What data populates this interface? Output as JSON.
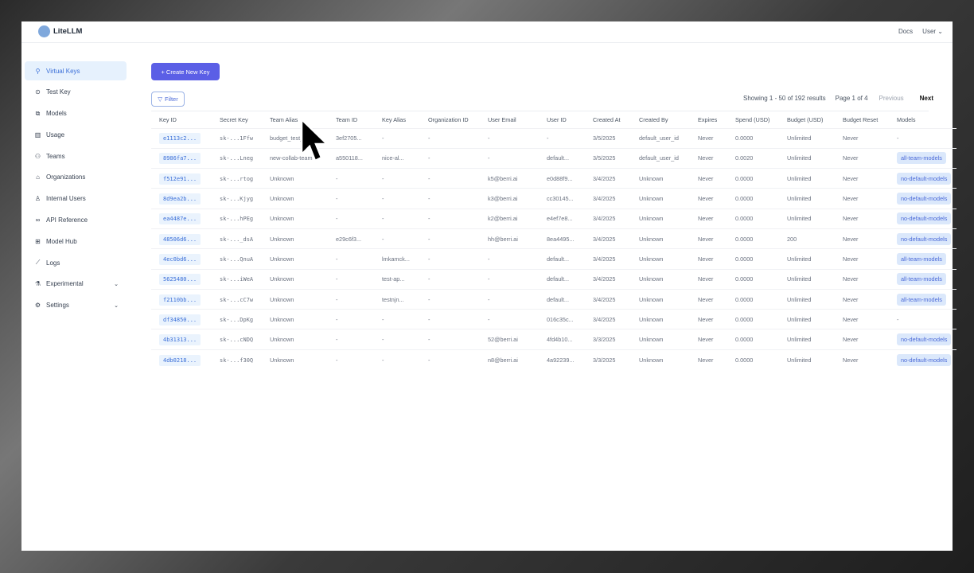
{
  "app": {
    "name": "LiteLLM"
  },
  "topbar": {
    "docs": "Docs",
    "user": "User"
  },
  "sidebar": {
    "items": [
      {
        "label": "Virtual Keys",
        "icon": "search-icon"
      },
      {
        "label": "Test Key",
        "icon": "play-icon"
      },
      {
        "label": "Models",
        "icon": "cube-icon"
      },
      {
        "label": "Usage",
        "icon": "bar-chart-icon"
      },
      {
        "label": "Teams",
        "icon": "team-icon"
      },
      {
        "label": "Organizations",
        "icon": "bank-icon"
      },
      {
        "label": "Internal Users",
        "icon": "user-icon"
      },
      {
        "label": "API Reference",
        "icon": "link-icon"
      },
      {
        "label": "Model Hub",
        "icon": "grid-icon"
      },
      {
        "label": "Logs",
        "icon": "line-chart-icon"
      },
      {
        "label": "Experimental",
        "icon": "flask-icon"
      },
      {
        "label": "Settings",
        "icon": "gear-icon"
      }
    ]
  },
  "toolbar": {
    "create_label": "+ Create New Key",
    "filter_label": "Filter"
  },
  "pager": {
    "showing": "Showing 1 - 50 of 192 results",
    "page": "Page 1 of 4",
    "previous": "Previous",
    "next": "Next"
  },
  "table": {
    "columns": [
      "Key ID",
      "Secret Key",
      "Team Alias",
      "Team ID",
      "Key Alias",
      "Organization ID",
      "User Email",
      "User ID",
      "Created At",
      "Created By",
      "Expires",
      "Spend (USD)",
      "Budget (USD)",
      "Budget Reset",
      "Models"
    ],
    "rows": [
      [
        "e1113c2...",
        "sk-...1Ffw",
        "budget_test_team",
        "3ef2705...",
        "-",
        "-",
        "-",
        "-",
        "3/5/2025",
        "default_user_id",
        "Never",
        "0.0000",
        "Unlimited",
        "Never",
        "-"
      ],
      [
        "8986fa7...",
        "sk-...Lneg",
        "new-collab-team",
        "a550118...",
        "nice-al...",
        "-",
        "-",
        "default...",
        "3/5/2025",
        "default_user_id",
        "Never",
        "0.0020",
        "Unlimited",
        "Never",
        "all-team-models"
      ],
      [
        "f512e91...",
        "sk-...rtog",
        "Unknown",
        "-",
        "-",
        "-",
        "k5@berri.ai",
        "e0d88f9...",
        "3/4/2025",
        "Unknown",
        "Never",
        "0.0000",
        "Unlimited",
        "Never",
        "no-default-models"
      ],
      [
        "8d9ea2b...",
        "sk-...Kjyg",
        "Unknown",
        "-",
        "-",
        "-",
        "k3@berri.ai",
        "cc30145...",
        "3/4/2025",
        "Unknown",
        "Never",
        "0.0000",
        "Unlimited",
        "Never",
        "no-default-models"
      ],
      [
        "ea4487e...",
        "sk-...hPEg",
        "Unknown",
        "-",
        "-",
        "-",
        "k2@berri.ai",
        "e4ef7e8...",
        "3/4/2025",
        "Unknown",
        "Never",
        "0.0000",
        "Unlimited",
        "Never",
        "no-default-models"
      ],
      [
        "48506d6...",
        "sk-..._dsA",
        "Unknown",
        "e29c6f3...",
        "-",
        "-",
        "hh@berri.ai",
        "8ea4495...",
        "3/4/2025",
        "Unknown",
        "Never",
        "0.0000",
        "200",
        "Never",
        "no-default-models"
      ],
      [
        "4ec0bd6...",
        "sk-...QnuA",
        "Unknown",
        "-",
        "lmkamck...",
        "-",
        "-",
        "default...",
        "3/4/2025",
        "Unknown",
        "Never",
        "0.0000",
        "Unlimited",
        "Never",
        "all-team-models"
      ],
      [
        "5625480...",
        "sk-...iWeA",
        "Unknown",
        "-",
        "test-ap...",
        "-",
        "-",
        "default...",
        "3/4/2025",
        "Unknown",
        "Never",
        "0.0000",
        "Unlimited",
        "Never",
        "all-team-models"
      ],
      [
        "f2110bb...",
        "sk-...cC7w",
        "Unknown",
        "-",
        "testnjn...",
        "-",
        "-",
        "default...",
        "3/4/2025",
        "Unknown",
        "Never",
        "0.0000",
        "Unlimited",
        "Never",
        "all-team-models"
      ],
      [
        "df34850...",
        "sk-...DpKg",
        "Unknown",
        "-",
        "-",
        "-",
        "-",
        "016c35c...",
        "3/4/2025",
        "Unknown",
        "Never",
        "0.0000",
        "Unlimited",
        "Never",
        "-"
      ],
      [
        "4b31313...",
        "sk-...cNDQ",
        "Unknown",
        "-",
        "-",
        "-",
        "52@berri.ai",
        "4fd4b10...",
        "3/3/2025",
        "Unknown",
        "Never",
        "0.0000",
        "Unlimited",
        "Never",
        "no-default-models"
      ],
      [
        "4db0218...",
        "sk-...f30Q",
        "Unknown",
        "-",
        "-",
        "-",
        "n8@berri.ai",
        "4a92239...",
        "3/3/2025",
        "Unknown",
        "Never",
        "0.0000",
        "Unlimited",
        "Never",
        "no-default-models"
      ]
    ]
  },
  "colors": {
    "accent": "#5b5fe6",
    "link": "#3b6fd8",
    "active_bg": "#e6f1fd"
  }
}
